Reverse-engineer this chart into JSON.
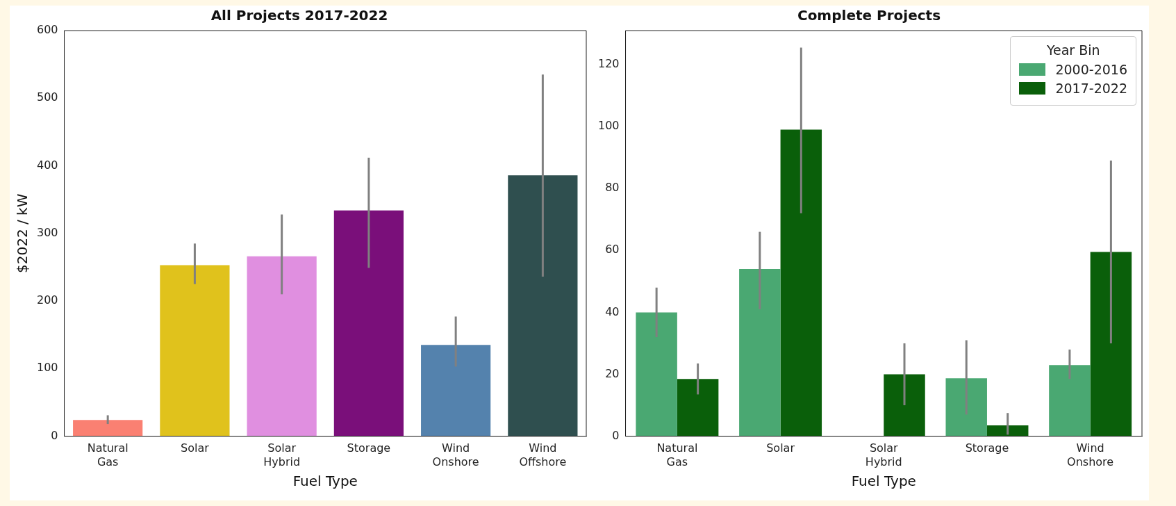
{
  "chart_data": [
    {
      "type": "bar",
      "title": "All Projects 2017-2022",
      "xlabel": "Fuel Type",
      "ylabel": "$2022 / kW",
      "categories": [
        "Natural Gas",
        "Solar",
        "Solar Hybrid",
        "Storage",
        "Wind Onshore",
        "Wind Offshore"
      ],
      "values": [
        24,
        253,
        266,
        334,
        135,
        386
      ],
      "colors": [
        "#fa8072",
        "#e0c21c",
        "#e08fe0",
        "#7a0f7a",
        "#5482ad",
        "#2f4f4f"
      ],
      "errors": [
        [
          18,
          31
        ],
        [
          225,
          285
        ],
        [
          210,
          328
        ],
        [
          249,
          412
        ],
        [
          103,
          177
        ],
        [
          236,
          535
        ]
      ],
      "ylim": [
        0,
        600
      ],
      "yticks": [
        0,
        100,
        200,
        300,
        400,
        500,
        600
      ],
      "grid": false,
      "legend": false
    },
    {
      "type": "bar",
      "title": "Complete Projects",
      "xlabel": "Fuel Type",
      "legend_title": "Year Bin",
      "categories": [
        "Natural Gas",
        "Solar",
        "Solar Hybrid",
        "Storage",
        "Wind Onshore"
      ],
      "series": [
        {
          "name": "2000-2016",
          "color": "#4aa872",
          "values": [
            40,
            54,
            null,
            18.7,
            23
          ],
          "errors": [
            [
              32,
              48
            ],
            [
              41,
              66
            ],
            null,
            [
              7,
              31
            ],
            [
              18.5,
              28
            ]
          ]
        },
        {
          "name": "2017-2022",
          "color": "#0a5f0a",
          "values": [
            18.5,
            99,
            20,
            3.5,
            59.5
          ],
          "errors": [
            [
              13.5,
              23.5
            ],
            [
              72,
              125.5
            ],
            [
              10,
              30
            ],
            [
              0.5,
              7.5
            ],
            [
              30,
              89
            ]
          ]
        }
      ],
      "ylim": [
        0,
        131
      ],
      "yticks": [
        0,
        20,
        40,
        60,
        80,
        100,
        120
      ],
      "grid": false,
      "legend": "top right"
    }
  ]
}
